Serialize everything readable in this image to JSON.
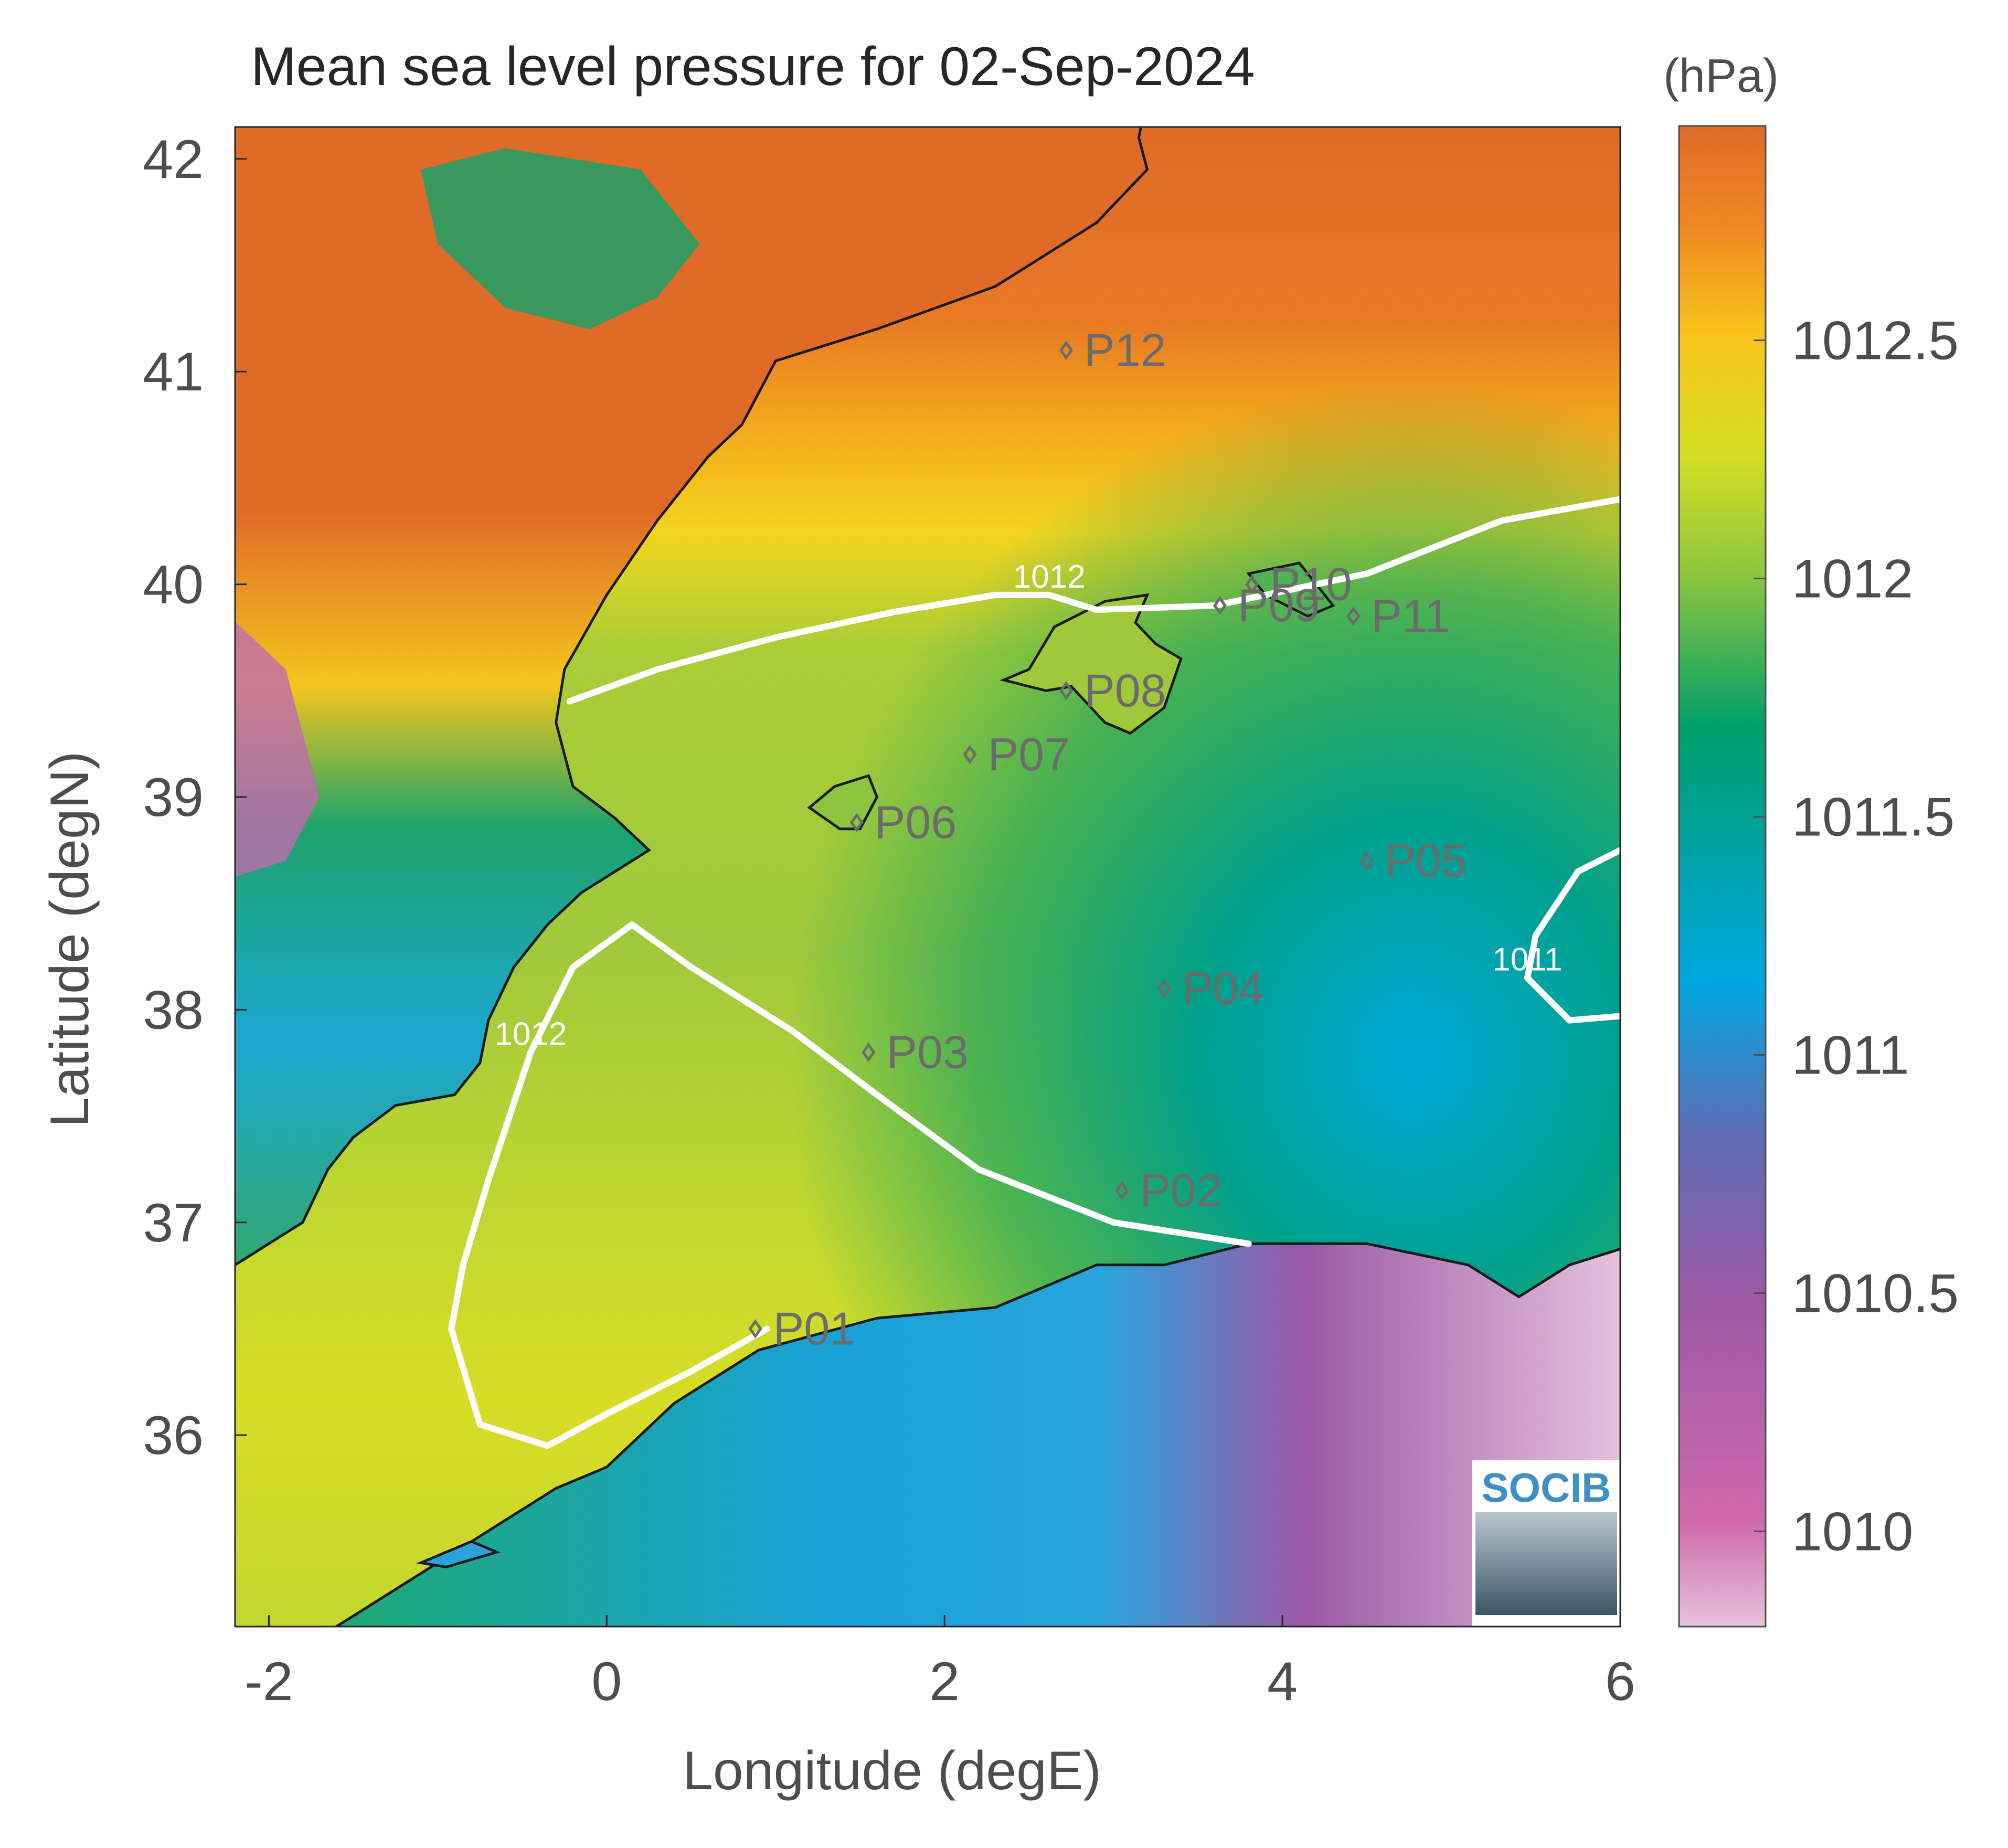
{
  "chart_data": {
    "type": "heatmap",
    "title": "Mean sea level pressure for 02-Sep-2024",
    "xlabel": "Longitude (degE)",
    "ylabel": "Latitude (degN)",
    "xlim": [
      -2.2,
      6
    ],
    "ylim": [
      35.1,
      42.15
    ],
    "x_ticks": [
      {
        "value": -2,
        "label": "-2"
      },
      {
        "value": 0,
        "label": "0"
      },
      {
        "value": 2,
        "label": "2"
      },
      {
        "value": 4,
        "label": "4"
      },
      {
        "value": 6,
        "label": "6"
      }
    ],
    "y_ticks": [
      {
        "value": 36,
        "label": "36"
      },
      {
        "value": 37,
        "label": "37"
      },
      {
        "value": 38,
        "label": "38"
      },
      {
        "value": 39,
        "label": "39"
      },
      {
        "value": 40,
        "label": "40"
      },
      {
        "value": 41,
        "label": "41"
      },
      {
        "value": 42,
        "label": "42"
      }
    ],
    "colorbar": {
      "unit_label": "(hPa)",
      "range": [
        1009.8,
        1012.95
      ],
      "ticks": [
        {
          "value": 1010,
          "label": "1010"
        },
        {
          "value": 1010.5,
          "label": "1010.5"
        },
        {
          "value": 1011,
          "label": "1011"
        },
        {
          "value": 1011.5,
          "label": "1011.5"
        },
        {
          "value": 1012,
          "label": "1012"
        },
        {
          "value": 1012.5,
          "label": "1012.5"
        }
      ],
      "colors": [
        "#e6c3dc",
        "#c85fa8",
        "#8757a6",
        "#00a8e2",
        "#009f6a",
        "#96c83c",
        "#f5e21e",
        "#f7a51a",
        "#e06a28"
      ]
    },
    "stations": [
      {
        "name": "P01",
        "lon": 0.88,
        "lat": 36.5
      },
      {
        "name": "P02",
        "lon": 3.05,
        "lat": 37.15
      },
      {
        "name": "P03",
        "lon": 1.55,
        "lat": 37.8
      },
      {
        "name": "P04",
        "lon": 3.3,
        "lat": 38.1
      },
      {
        "name": "P05",
        "lon": 4.5,
        "lat": 38.7
      },
      {
        "name": "P06",
        "lon": 1.48,
        "lat": 38.88
      },
      {
        "name": "P07",
        "lon": 2.15,
        "lat": 39.2
      },
      {
        "name": "P08",
        "lon": 2.72,
        "lat": 39.5
      },
      {
        "name": "P09",
        "lon": 3.63,
        "lat": 39.9
      },
      {
        "name": "P10",
        "lon": 3.82,
        "lat": 40.0
      },
      {
        "name": "P11",
        "lon": 4.42,
        "lat": 39.85
      },
      {
        "name": "P12",
        "lon": 2.72,
        "lat": 41.1
      }
    ],
    "contours": [
      {
        "level": 1012,
        "label": "1012",
        "points": [
          [
            -0.22,
            39.45
          ],
          [
            0.3,
            39.6
          ],
          [
            1.0,
            39.75
          ],
          [
            1.7,
            39.87
          ],
          [
            2.3,
            39.95
          ],
          [
            2.62,
            39.95
          ],
          [
            2.9,
            39.88
          ],
          [
            3.6,
            39.9
          ],
          [
            4.5,
            40.05
          ],
          [
            5.3,
            40.3
          ],
          [
            6.0,
            40.4
          ]
        ]
      },
      {
        "level": 1012,
        "label": "1012",
        "points": [
          [
            0.95,
            36.5
          ],
          [
            0.5,
            36.3
          ],
          [
            0.0,
            36.1
          ],
          [
            -0.35,
            35.95
          ],
          [
            -0.75,
            36.05
          ],
          [
            -0.92,
            36.5
          ],
          [
            -0.85,
            36.8
          ],
          [
            -0.7,
            37.2
          ],
          [
            -0.45,
            37.8
          ],
          [
            -0.2,
            38.2
          ],
          [
            0.15,
            38.4
          ],
          [
            0.5,
            38.2
          ],
          [
            1.1,
            37.9
          ],
          [
            1.6,
            37.6
          ],
          [
            2.2,
            37.25
          ],
          [
            3.0,
            37.0
          ],
          [
            3.8,
            36.9
          ]
        ]
      },
      {
        "level": 1011,
        "label": "1011",
        "points": [
          [
            6.0,
            38.75
          ],
          [
            5.75,
            38.65
          ],
          [
            5.5,
            38.35
          ],
          [
            5.45,
            38.15
          ],
          [
            5.7,
            37.95
          ],
          [
            6.0,
            37.97
          ]
        ]
      }
    ],
    "logo_text": "SOCIB"
  }
}
